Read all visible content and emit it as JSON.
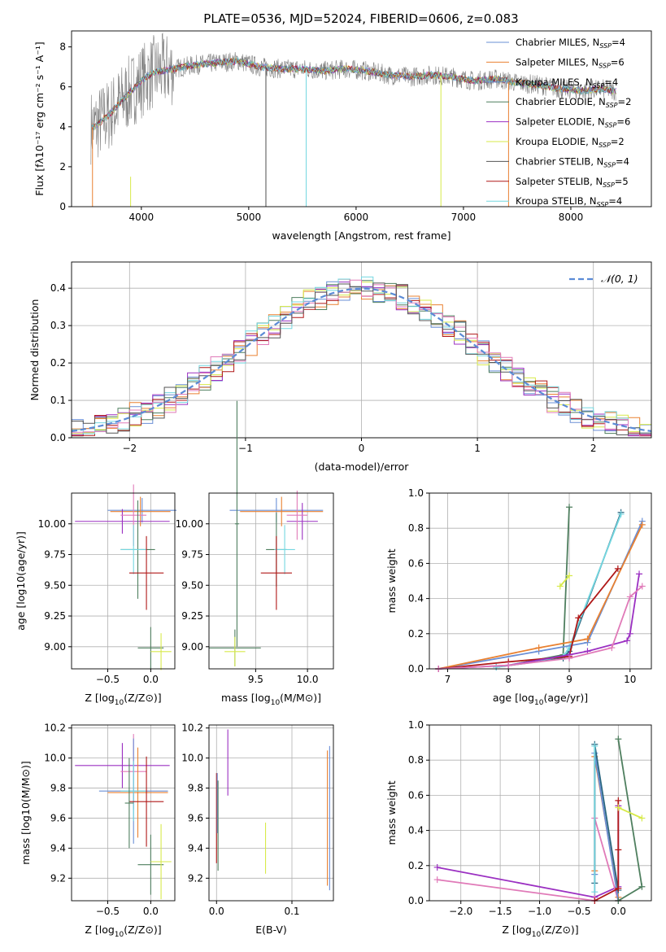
{
  "figure_title": "PLATE=0536, MJD=52024, FIBERID=0606, z=0.083",
  "colors": {
    "Chabrier MILES": "#6a8fd6",
    "Salpeter MILES": "#e98131",
    "Kroupa MILES": "#6a8fd6",
    "Chabrier ELODIE": "#4f7f5f",
    "Salpeter ELODIE": "#9b30c2",
    "Kroupa ELODIE": "#d7ea4a",
    "Chabrier STELIB": "#555555",
    "Salpeter STELIB": "#b01818",
    "Kroupa STELIB": "#74d7e0",
    "pink": "#e07ab8",
    "data": "#808080",
    "gauss": "#5b8bd6"
  },
  "chart_data": [
    {
      "type": "line",
      "title": "PLATE=0536, MJD=52024, FIBERID=0606, z=0.083",
      "xlabel": "wavelength [Angstrom, rest frame]",
      "ylabel": "Flux [fλ10⁻¹⁷ erg cm⁻² s⁻¹ A⁻¹]",
      "xlim": [
        3350,
        8750
      ],
      "ylim": [
        0,
        8.8
      ],
      "xticks": [
        "4000",
        "5000",
        "6000",
        "7000",
        "8000"
      ],
      "yticks": [
        "0",
        "2",
        "4",
        "6",
        "8"
      ],
      "legend_position": "top-right",
      "legend": [
        {
          "label": "Chabrier MILES, N",
          "sub": "SSP",
          "tail": "=4",
          "color": "#6a8fd6"
        },
        {
          "label": "Salpeter MILES, N",
          "sub": "SSP",
          "tail": "=6",
          "color": "#e98131"
        },
        {
          "label": "Kroupa MILES, N",
          "sub": "SSP",
          "tail": "=4",
          "color": "#6a8fd6"
        },
        {
          "label": "Chabrier ELODIE, N",
          "sub": "SSP",
          "tail": "=2",
          "color": "#4f7f5f"
        },
        {
          "label": "Salpeter ELODIE, N",
          "sub": "SSP",
          "tail": "=6",
          "color": "#9b30c2"
        },
        {
          "label": "Kroupa ELODIE, N",
          "sub": "SSP",
          "tail": "=2",
          "color": "#d7ea4a"
        },
        {
          "label": "Chabrier STELIB, N",
          "sub": "SSP",
          "tail": "=4",
          "color": "#555555"
        },
        {
          "label": "Salpeter STELIB, N",
          "sub": "SSP",
          "tail": "=5",
          "color": "#b01818"
        },
        {
          "label": "Kroupa STELIB, N",
          "sub": "SSP",
          "tail": "=4",
          "color": "#74d7e0"
        }
      ],
      "continuum_x": [
        3560,
        3700,
        3850,
        4000,
        4100,
        4300,
        4500,
        4700,
        4900,
        5100,
        5300,
        5500,
        5700,
        5900,
        6100,
        6300,
        6500,
        6700,
        6900,
        7100,
        7300,
        7500,
        7700,
        7900,
        8100,
        8300,
        8400
      ],
      "continuum_y": [
        4.0,
        4.6,
        5.5,
        6.3,
        6.7,
        6.9,
        7.1,
        7.2,
        7.3,
        7.0,
        6.9,
        6.9,
        6.8,
        6.9,
        6.8,
        6.6,
        6.5,
        6.6,
        6.5,
        6.3,
        6.4,
        6.2,
        6.1,
        5.9,
        5.8,
        5.9,
        5.8
      ],
      "data_spikes_x": [
        5160,
        5535,
        6790,
        7420
      ],
      "grid": false
    },
    {
      "type": "step",
      "xlabel": "(data-model)/error",
      "ylabel": "Normed distribution",
      "xlim": [
        -2.5,
        2.5
      ],
      "ylim": [
        0,
        0.47
      ],
      "xticks": [
        "−2",
        "−1",
        "0",
        "1",
        "2"
      ],
      "yticks": [
        "0.0",
        "0.1",
        "0.2",
        "0.3",
        "0.4"
      ],
      "legend": {
        "label": "𝒩(0, 1)",
        "position": "top-right"
      },
      "bin_width": 0.1,
      "gaussian": {
        "mean": 0,
        "sigma": 1
      },
      "grid": true
    },
    {
      "type": "errorbar",
      "xlabel_main": "Z [log",
      "xlabel_sub": "10",
      "xlabel_tail": "(Z/Z⊙)]",
      "ylabel": "age  [log10(age/yr)]",
      "xlim": [
        -0.92,
        0.28
      ],
      "ylim": [
        8.82,
        10.25
      ],
      "xticks": [
        {
          "v": -0.5,
          "t": "−0.5"
        },
        {
          "v": 0,
          "t": "0.0"
        }
      ],
      "yticks": [
        {
          "v": 9.0,
          "t": "9.00"
        },
        {
          "v": 9.25,
          "t": "9.25"
        },
        {
          "v": 9.5,
          "t": "9.50"
        },
        {
          "v": 9.75,
          "t": "9.75"
        },
        {
          "v": 10.0,
          "t": "10.00"
        }
      ],
      "points": [
        {
          "x": -0.1,
          "y": 10.11,
          "xe": 0.4,
          "ye": 0.1,
          "c": "#6a8fd6"
        },
        {
          "x": -0.12,
          "y": 10.1,
          "xe": 0.35,
          "ye": 0.12,
          "c": "#e98131"
        },
        {
          "x": -0.33,
          "y": 10.02,
          "xe": 0.55,
          "ye": 0.1,
          "c": "#9b30c2"
        },
        {
          "x": -0.2,
          "y": 10.07,
          "xe": 0.15,
          "ye": 0.25,
          "c": "#e07ab8"
        },
        {
          "x": -0.15,
          "y": 9.79,
          "xe": 0.2,
          "ye": 0.4,
          "c": "#4f7f5f"
        },
        {
          "x": -0.2,
          "y": 9.79,
          "xe": 0.15,
          "ye": 0.2,
          "c": "#74d7e0"
        },
        {
          "x": -0.05,
          "y": 9.6,
          "xe": 0.2,
          "ye": 0.3,
          "c": "#b01818"
        },
        {
          "x": 0.0,
          "y": 8.99,
          "xe": 0.15,
          "ye": 0.17,
          "c": "#4f7f5f"
        },
        {
          "x": 0.12,
          "y": 8.96,
          "xe": 0.12,
          "ye": 0.15,
          "c": "#d7ea4a"
        }
      ]
    },
    {
      "type": "errorbar",
      "xlabel_main": "mass [log",
      "xlabel_sub": "10",
      "xlabel_tail": "(M/M⊙)]",
      "ylabel": "",
      "xlim": [
        9.05,
        10.25
      ],
      "ylim": [
        8.82,
        10.25
      ],
      "xticks": [
        {
          "v": 9.5,
          "t": "9.5"
        },
        {
          "v": 10,
          "t": "10.0"
        }
      ],
      "yticks": [
        {
          "v": 9.0,
          "t": "9.00"
        },
        {
          "v": 9.25,
          "t": "9.25"
        },
        {
          "v": 9.5,
          "t": "9.50"
        },
        {
          "v": 9.75,
          "t": "9.75"
        },
        {
          "v": 10.0,
          "t": "10.00"
        }
      ],
      "points": [
        {
          "x": 9.7,
          "y": 10.11,
          "xe": 0.45,
          "ye": 0.1,
          "c": "#6a8fd6"
        },
        {
          "x": 9.75,
          "y": 10.1,
          "xe": 0.4,
          "ye": 0.12,
          "c": "#e98131"
        },
        {
          "x": 9.95,
          "y": 10.02,
          "xe": 0.15,
          "ye": 0.15,
          "c": "#9b30c2"
        },
        {
          "x": 9.9,
          "y": 10.07,
          "xe": 0.1,
          "ye": 0.2,
          "c": "#e07ab8"
        },
        {
          "x": 9.7,
          "y": 9.79,
          "xe": 0.1,
          "ye": 0.3,
          "c": "#4f7f5f"
        },
        {
          "x": 9.78,
          "y": 9.79,
          "xe": 0.1,
          "ye": 0.2,
          "c": "#74d7e0"
        },
        {
          "x": 9.7,
          "y": 9.6,
          "xe": 0.15,
          "ye": 0.3,
          "c": "#b01818"
        },
        {
          "x": 9.3,
          "y": 8.99,
          "xe": 0.25,
          "ye": 0.15,
          "c": "#4f7f5f"
        },
        {
          "x": 9.3,
          "y": 8.96,
          "xe": 0.1,
          "ye": 0.12,
          "c": "#d7ea4a"
        },
        {
          "x": 9.32,
          "y": 10.0,
          "xe": 0.02,
          "ye": 1.0,
          "c": "#4f7f5f"
        }
      ]
    },
    {
      "type": "line",
      "xlabel_main": "age  [log",
      "xlabel_sub": "10",
      "xlabel_tail": "(age/yr)]",
      "ylabel": "mass weight",
      "xlim": [
        6.7,
        10.35
      ],
      "ylim": [
        0,
        1
      ],
      "xticks": [
        {
          "v": 7,
          "t": "7"
        },
        {
          "v": 8,
          "t": "8"
        },
        {
          "v": 9,
          "t": "9"
        },
        {
          "v": 10,
          "t": "10"
        }
      ],
      "yticks": [
        {
          "v": 0,
          "t": "0.0"
        },
        {
          "v": 0.2,
          "t": "0.2"
        },
        {
          "v": 0.4,
          "t": "0.4"
        },
        {
          "v": 0.6,
          "t": "0.6"
        },
        {
          "v": 0.8,
          "t": "0.8"
        },
        {
          "v": 1,
          "t": "1.0"
        }
      ],
      "series": [
        {
          "c": "#4f7f5f",
          "x": [
            8.0,
            8.9,
            9.0
          ],
          "y": [
            0.02,
            0.08,
            0.92
          ]
        },
        {
          "c": "#d7ea4a",
          "x": [
            8.85,
            9.0
          ],
          "y": [
            0.47,
            0.53
          ]
        },
        {
          "c": "#2a6680",
          "x": [
            7.8,
            8.9,
            9.0,
            9.85
          ],
          "y": [
            0.01,
            0.06,
            0.1,
            0.89
          ]
        },
        {
          "c": "#74d7e0",
          "x": [
            7.8,
            8.9,
            9.0,
            9.85
          ],
          "y": [
            0.01,
            0.07,
            0.12,
            0.88
          ]
        },
        {
          "c": "#6a8fd6",
          "x": [
            6.85,
            8.5,
            9.3,
            10.2
          ],
          "y": [
            0.0,
            0.1,
            0.15,
            0.84
          ]
        },
        {
          "c": "#e98131",
          "x": [
            6.85,
            8.5,
            9.3,
            10.2
          ],
          "y": [
            0.0,
            0.12,
            0.17,
            0.82
          ]
        },
        {
          "c": "#b01818",
          "x": [
            6.85,
            8.0,
            9.0,
            9.15,
            9.8
          ],
          "y": [
            0.0,
            0.04,
            0.07,
            0.29,
            0.57
          ]
        },
        {
          "c": "#9b30c2",
          "x": [
            6.85,
            8.0,
            9.0,
            9.3,
            9.95,
            10.0,
            10.15
          ],
          "y": [
            0.0,
            0.02,
            0.08,
            0.1,
            0.16,
            0.2,
            0.54
          ]
        },
        {
          "c": "#e07ab8",
          "x": [
            6.85,
            8.0,
            9.0,
            9.7,
            10.0,
            10.2
          ],
          "y": [
            0.0,
            0.02,
            0.06,
            0.12,
            0.41,
            0.47
          ]
        }
      ]
    },
    {
      "type": "errorbar",
      "xlabel_main": "Z [log",
      "xlabel_sub": "10",
      "xlabel_tail": "(Z/Z⊙)]",
      "ylabel": "mass [log10(M/M⊙)]",
      "xlim": [
        -0.92,
        0.28
      ],
      "ylim": [
        9.05,
        10.22
      ],
      "xticks": [
        {
          "v": -0.5,
          "t": "−0.5"
        },
        {
          "v": 0,
          "t": "0.0"
        }
      ],
      "yticks": [
        {
          "v": 9.2,
          "t": "9.2"
        },
        {
          "v": 9.4,
          "t": "9.4"
        },
        {
          "v": 9.6,
          "t": "9.6"
        },
        {
          "v": 9.8,
          "t": "9.8"
        },
        {
          "v": 10.0,
          "t": "10.0"
        },
        {
          "v": 10.2,
          "t": "10.2"
        }
      ],
      "points": [
        {
          "x": -0.33,
          "y": 9.95,
          "xe": 0.55,
          "ye": 0.15,
          "c": "#9b30c2"
        },
        {
          "x": -0.2,
          "y": 9.91,
          "xe": 0.15,
          "ye": 0.25,
          "c": "#e07ab8"
        },
        {
          "x": -0.2,
          "y": 9.78,
          "xe": 0.4,
          "ye": 0.35,
          "c": "#6a8fd6"
        },
        {
          "x": -0.15,
          "y": 9.77,
          "xe": 0.35,
          "ye": 0.3,
          "c": "#e98131"
        },
        {
          "x": -0.2,
          "y": 9.78,
          "xe": 0.15,
          "ye": 0.2,
          "c": "#74d7e0"
        },
        {
          "x": -0.05,
          "y": 9.71,
          "xe": 0.2,
          "ye": 0.3,
          "c": "#b01818"
        },
        {
          "x": -0.25,
          "y": 9.7,
          "xe": 0.05,
          "ye": 0.3,
          "c": "#4f7f5f"
        },
        {
          "x": 0.0,
          "y": 9.29,
          "xe": 0.15,
          "ye": 0.2,
          "c": "#4f7f5f"
        },
        {
          "x": 0.12,
          "y": 9.31,
          "xe": 0.12,
          "ye": 0.25,
          "c": "#d7ea4a"
        }
      ]
    },
    {
      "type": "errorbar",
      "xlabel_main": "E(B-V)",
      "xlabel_sub": "",
      "xlabel_tail": "",
      "ylabel": "",
      "xlim": [
        -0.01,
        0.155
      ],
      "ylim": [
        9.05,
        10.22
      ],
      "xticks": [
        {
          "v": 0,
          "t": "0.0"
        },
        {
          "v": 0.1,
          "t": "0.1"
        }
      ],
      "yticks": [
        {
          "v": 9.2,
          "t": "9.2"
        },
        {
          "v": 9.4,
          "t": "9.4"
        },
        {
          "v": 9.6,
          "t": "9.6"
        },
        {
          "v": 9.8,
          "t": "9.8"
        },
        {
          "v": 10.0,
          "t": "10.0"
        },
        {
          "v": 10.2,
          "t": "10.2"
        }
      ],
      "points": [
        {
          "x": 0.0,
          "y": 9.6,
          "xe": 0,
          "ye": 0.3,
          "c": "#b01818"
        },
        {
          "x": 0.001,
          "y": 9.7,
          "xe": 0,
          "ye": 0.2,
          "c": "#6a8fd6"
        },
        {
          "x": 0.002,
          "y": 9.55,
          "xe": 0,
          "ye": 0.3,
          "c": "#4f7f5f"
        },
        {
          "x": 0.015,
          "y": 9.97,
          "xe": 0,
          "ye": 0.22,
          "c": "#9b30c2"
        },
        {
          "x": 0.065,
          "y": 9.4,
          "xe": 0,
          "ye": 0.17,
          "c": "#d7ea4a"
        },
        {
          "x": 0.147,
          "y": 9.6,
          "xe": 0,
          "ye": 0.45,
          "c": "#e98131"
        },
        {
          "x": 0.15,
          "y": 9.6,
          "xe": 0,
          "ye": 0.48,
          "c": "#6a8fd6"
        }
      ]
    },
    {
      "type": "line",
      "xlabel_main": "Z [log",
      "xlabel_sub": "10",
      "xlabel_tail": "(Z/Z⊙)]",
      "ylabel": "mass weight",
      "xlim": [
        -2.4,
        0.42
      ],
      "ylim": [
        0,
        1
      ],
      "xticks": [
        {
          "v": -2.0,
          "t": "−2.0"
        },
        {
          "v": -1.5,
          "t": "−1.5"
        },
        {
          "v": -1.0,
          "t": "−1.0"
        },
        {
          "v": -0.5,
          "t": "−0.5"
        },
        {
          "v": 0,
          "t": "0.0"
        }
      ],
      "yticks": [
        {
          "v": 0,
          "t": "0.0"
        },
        {
          "v": 0.2,
          "t": "0.2"
        },
        {
          "v": 0.4,
          "t": "0.4"
        },
        {
          "v": 0.6,
          "t": "0.6"
        },
        {
          "v": 0.8,
          "t": "0.8"
        },
        {
          "v": 1,
          "t": "1.0"
        }
      ],
      "series": [
        {
          "c": "#9b30c2",
          "x": [
            -2.3,
            -0.3,
            0.0,
            0.0
          ],
          "y": [
            0.19,
            0.02,
            0.08,
            0.54
          ]
        },
        {
          "c": "#e07ab8",
          "x": [
            -2.3,
            -0.3,
            -0.3,
            0.0
          ],
          "y": [
            0.12,
            0.0,
            0.47,
            0.0
          ]
        },
        {
          "c": "#e98131",
          "x": [
            -0.3,
            -0.3,
            0.0,
            0.0
          ],
          "y": [
            0.17,
            0.82,
            0.02,
            0.0
          ]
        },
        {
          "c": "#6a8fd6",
          "x": [
            -0.3,
            -0.3,
            0.0
          ],
          "y": [
            0.15,
            0.84,
            0.0
          ]
        },
        {
          "c": "#2a6680",
          "x": [
            -0.3,
            -0.3,
            0.0
          ],
          "y": [
            0.1,
            0.89,
            0.06
          ]
        },
        {
          "c": "#74d7e0",
          "x": [
            -0.3,
            -0.3
          ],
          "y": [
            0.05,
            0.88
          ]
        },
        {
          "c": "#b01818",
          "x": [
            -0.3,
            0.0,
            0.0,
            0.0
          ],
          "y": [
            0.0,
            0.07,
            0.29,
            0.57
          ]
        },
        {
          "c": "#4f7f5f",
          "x": [
            0.0,
            0.3,
            0.0
          ],
          "y": [
            0.92,
            0.08,
            0.0
          ]
        },
        {
          "c": "#d7ea4a",
          "x": [
            0.0,
            0.3
          ],
          "y": [
            0.53,
            0.47
          ]
        }
      ]
    }
  ]
}
